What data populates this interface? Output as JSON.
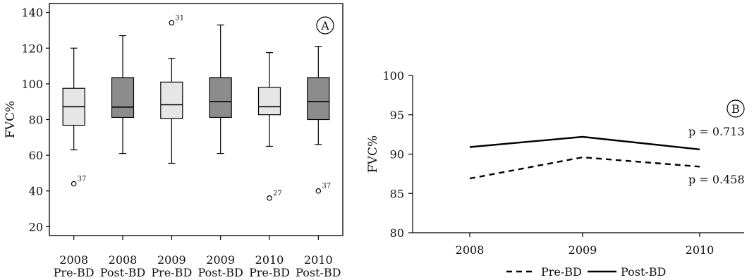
{
  "chart_data": [
    {
      "panel": "A",
      "type": "boxplot",
      "ylabel": "FVC%",
      "ylim": [
        15,
        145
      ],
      "yticks": [
        20,
        40,
        60,
        80,
        100,
        120,
        140
      ],
      "grid": false,
      "categories": [
        {
          "year": "2008",
          "group": "Pre-BD",
          "fill": "#e6e6e6",
          "whisker_low": 63,
          "q1": 76.8,
          "median": 87.2,
          "q3": 97.5,
          "whisker_high": 120,
          "outliers": [
            {
              "value": 44,
              "label": "37"
            }
          ]
        },
        {
          "year": "2008",
          "group": "Post-BD",
          "fill": "#8c8c8c",
          "whisker_low": 61,
          "q1": 81.2,
          "median": 87.0,
          "q3": 103.5,
          "whisker_high": 127,
          "outliers": []
        },
        {
          "year": "2009",
          "group": "Pre-BD",
          "fill": "#e6e6e6",
          "whisker_low": 55.5,
          "q1": 80.5,
          "median": 88.3,
          "q3": 101.0,
          "whisker_high": 114.3,
          "outliers": [
            {
              "value": 134.2,
              "label": "31"
            }
          ]
        },
        {
          "year": "2009",
          "group": "Post-BD",
          "fill": "#8c8c8c",
          "whisker_low": 61,
          "q1": 81.2,
          "median": 90.0,
          "q3": 103.5,
          "whisker_high": 133,
          "outliers": []
        },
        {
          "year": "2010",
          "group": "Pre-BD",
          "fill": "#e6e6e6",
          "whisker_low": 65,
          "q1": 82.7,
          "median": 87.2,
          "q3": 98.0,
          "whisker_high": 117.5,
          "outliers": [
            {
              "value": 36,
              "label": "27"
            }
          ]
        },
        {
          "year": "2010",
          "group": "Post-BD",
          "fill": "#8c8c8c",
          "whisker_low": 66,
          "q1": 80.0,
          "median": 90.0,
          "q3": 103.5,
          "whisker_high": 121,
          "outliers": [
            {
              "value": 40,
              "label": "37"
            }
          ]
        }
      ]
    },
    {
      "panel": "B",
      "type": "line",
      "ylabel": "FVC%",
      "ylim": [
        80,
        100
      ],
      "yticks": [
        80,
        85,
        90,
        95,
        100
      ],
      "grid": false,
      "categories": [
        "2008",
        "2009",
        "2010"
      ],
      "series": [
        {
          "name": "Pre-BD",
          "style": "dashed",
          "values": [
            86.9,
            89.6,
            88.4
          ]
        },
        {
          "name": "Post-BD",
          "style": "solid",
          "values": [
            90.9,
            92.2,
            90.6
          ]
        }
      ],
      "annotations": [
        {
          "text": "p = 0.713",
          "series": "Post-BD"
        },
        {
          "text": "p = 0.458",
          "series": "Pre-BD"
        }
      ],
      "legend_position": "bottom"
    }
  ]
}
